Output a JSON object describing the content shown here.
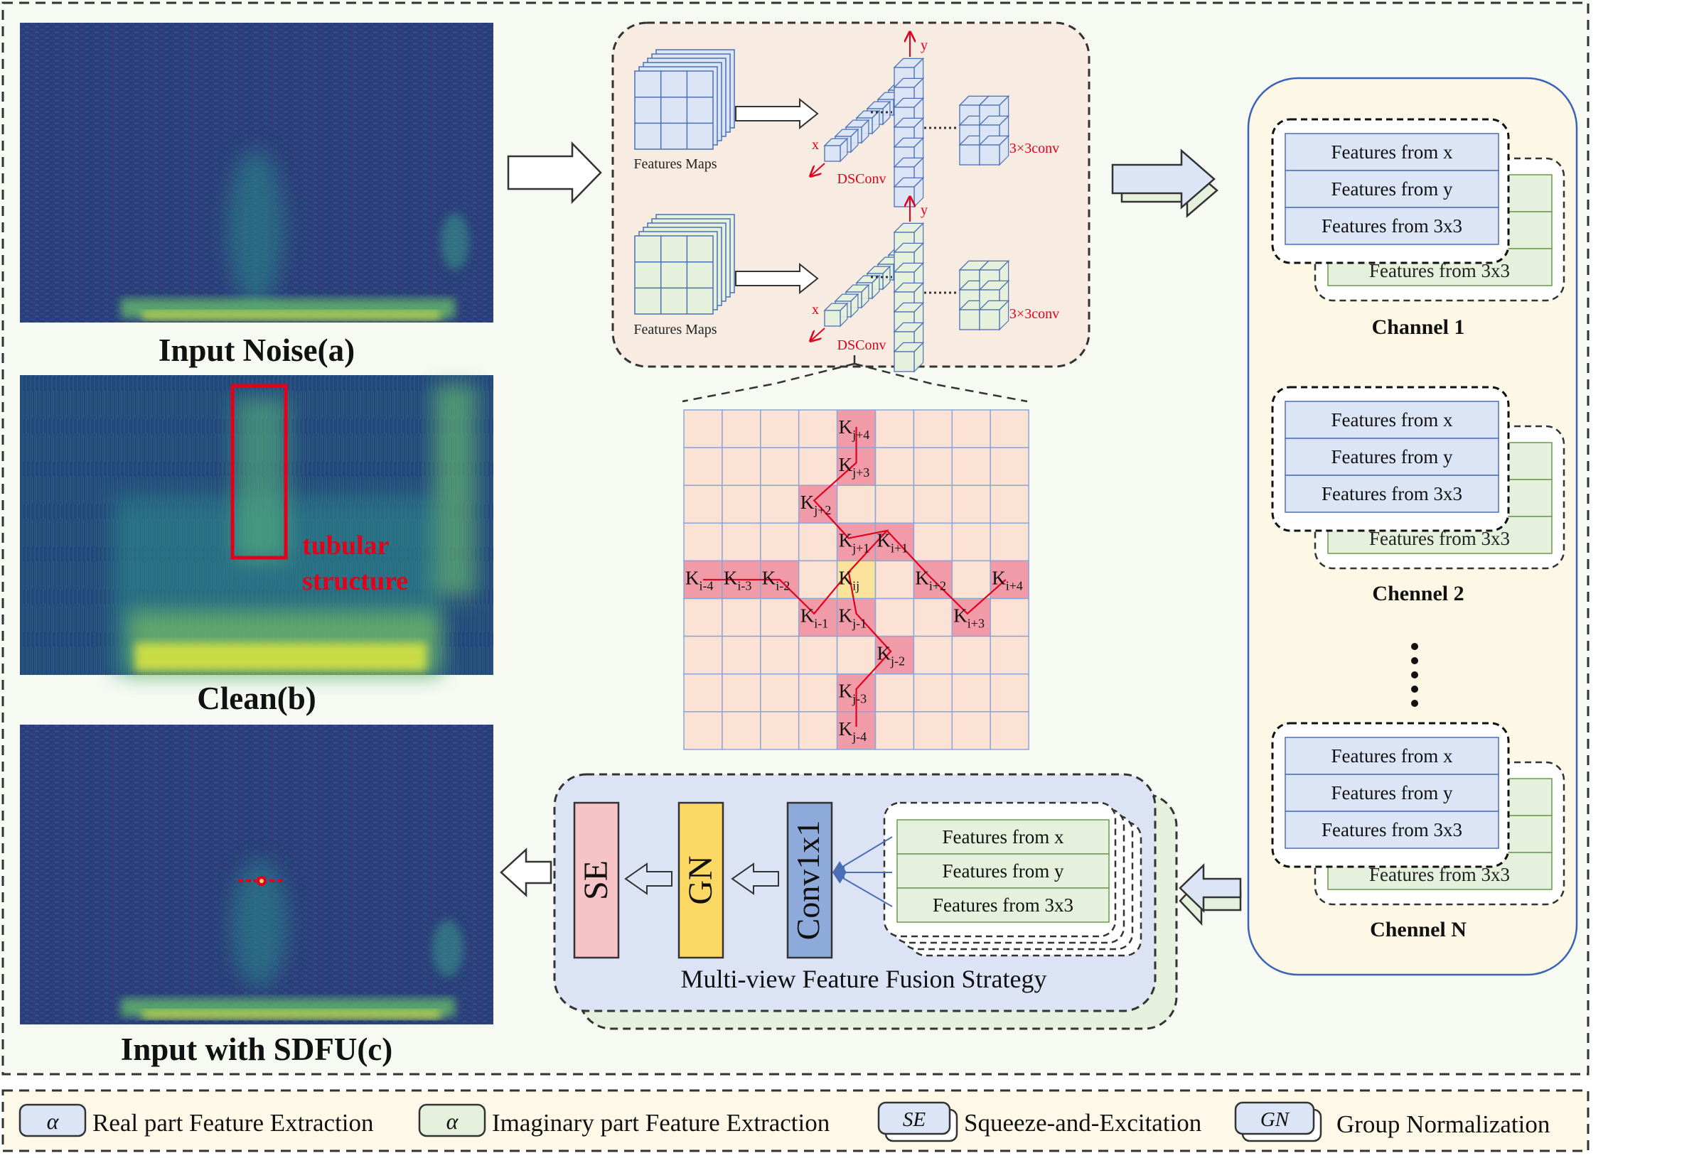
{
  "panels": {
    "noise_caption": "Input Noise(a)",
    "clean_caption": "Clean(b)",
    "sdfu_caption": "Input with SDFU(c)",
    "tubular_label_line1": "tubular",
    "tubular_label_line2": "structure"
  },
  "dsconv_block": {
    "features_maps_top": "Features Maps",
    "features_maps_bottom": "Features Maps",
    "dsconv_top": "DSConv",
    "dsconv_bottom": "DSConv",
    "conv_top": "3×3conv",
    "conv_bottom": "3×3conv",
    "axis_x_top": "x",
    "axis_y_top": "y",
    "axis_x_bottom": "x",
    "axis_y_bottom": "y"
  },
  "kernel_grid": {
    "labels": [
      {
        "base": "K",
        "sub": "j+4"
      },
      {
        "base": "K",
        "sub": "j+3"
      },
      {
        "base": "K",
        "sub": "j+2"
      },
      {
        "base": "K",
        "sub": "j+1"
      },
      {
        "base": "K",
        "sub": "i+1"
      },
      {
        "base": "K",
        "sub": "i-4"
      },
      {
        "base": "K",
        "sub": "i-3"
      },
      {
        "base": "K",
        "sub": "i-2"
      },
      {
        "base": "K",
        "sub": "ij"
      },
      {
        "base": "K",
        "sub": "i+2"
      },
      {
        "base": "K",
        "sub": "i+4"
      },
      {
        "base": "K",
        "sub": "i-1"
      },
      {
        "base": "K",
        "sub": "j-1"
      },
      {
        "base": "K",
        "sub": "i+3"
      },
      {
        "base": "K",
        "sub": "j-2"
      },
      {
        "base": "K",
        "sub": "j-3"
      },
      {
        "base": "K",
        "sub": "j-4"
      }
    ]
  },
  "channels": [
    {
      "label": "Channel 1",
      "front": [
        "Features from x",
        "Features from y",
        "Features from 3x3"
      ],
      "back_visible": "Features from 3x3"
    },
    {
      "label": "Chennel 2",
      "front": [
        "Features from x",
        "Features from y",
        "Features from 3x3"
      ],
      "back_visible": "Features from 3x3"
    },
    {
      "label": "Chennel N",
      "front": [
        "Features from x",
        "Features from y",
        "Features from 3x3"
      ],
      "back_visible": "Features from 3x3"
    }
  ],
  "fusion": {
    "se": "SE",
    "gn": "GN",
    "conv": "Conv1x1",
    "features": [
      "Features from x",
      "Features from y",
      "Features from 3x3"
    ],
    "caption": "Multi-view Feature Fusion Strategy"
  },
  "legend": {
    "real_symbol": "α",
    "real_label": "Real part Feature Extraction",
    "imag_symbol": "α",
    "imag_label": "Imaginary part Feature Extraction",
    "se_symbol": "SE",
    "se_label": "Squeeze-and-Excitation",
    "gn_symbol": "GN",
    "gn_label": "Group Normalization"
  },
  "colors": {
    "real_fill": "#dbe5f6",
    "imag_fill": "#e6f1dd",
    "dsconv_bg": "#f7ebe2",
    "channel_bg": "#fdf7e6",
    "fusion_bg": "#dce3f4",
    "highlight_red": "#e3001b",
    "se_fill": "#f6c3c7",
    "gn_fill": "#fbd764",
    "conv_fill": "#8eaadb",
    "grid_cell": "#fbe2d4",
    "grid_hot": "#f19ba8",
    "grid_center": "#fbe39b"
  }
}
